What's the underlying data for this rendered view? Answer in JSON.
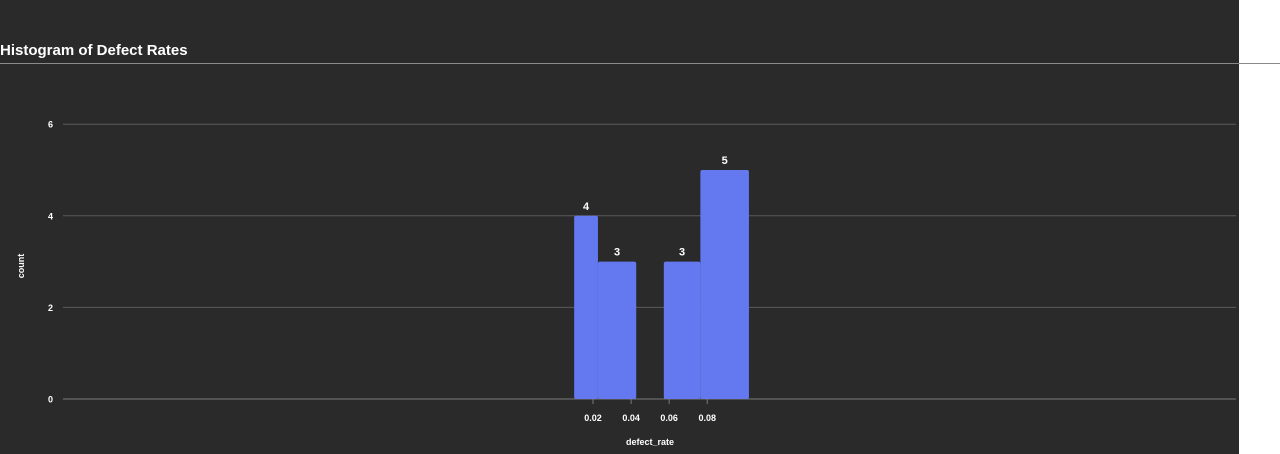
{
  "chart_data": {
    "type": "bar",
    "title": "Histogram of Defect Rates",
    "xlabel": "defect_rate",
    "ylabel": "count",
    "ylim": [
      0,
      7
    ],
    "yticks": [
      0,
      2,
      4,
      6
    ],
    "xticks": [
      "0.02",
      "0.04",
      "0.06",
      "0.08"
    ],
    "xtick_values": [
      0.02,
      0.04,
      0.06,
      0.08
    ],
    "bins": [
      {
        "x0": 0.0101,
        "x1": 0.0226,
        "count": 4
      },
      {
        "x0": 0.0226,
        "x1": 0.0427,
        "count": 3
      },
      {
        "x0": 0.0427,
        "x1": 0.0572,
        "count": 0
      },
      {
        "x0": 0.0572,
        "x1": 0.0764,
        "count": 3
      },
      {
        "x0": 0.0764,
        "x1": 0.1019,
        "count": 5
      }
    ],
    "grid": true,
    "colors": {
      "bar": "#6479f0",
      "background": "#2a2a2a",
      "grid": "#5a5a5a",
      "text": "#ffffff"
    }
  }
}
